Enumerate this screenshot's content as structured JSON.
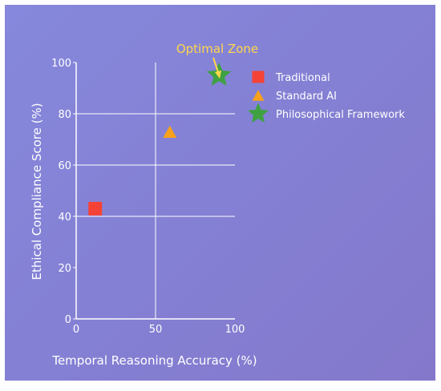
{
  "colors": {
    "background_start": "#8588dc",
    "background_end": "#8478cb",
    "axis": "#ffffff",
    "grid": "#ffffff",
    "annotation": "#ffd84a"
  },
  "chart_data": {
    "type": "scatter",
    "title": "",
    "xlabel": "Temporal Reasoning Accuracy (%)",
    "ylabel": "Ethical Compliance Score (%)",
    "xlim": [
      0,
      100
    ],
    "ylim": [
      0,
      100
    ],
    "x_ticks": [
      "0",
      "50",
      "100"
    ],
    "y_ticks": [
      "0",
      "20",
      "40",
      "60",
      "80",
      "100"
    ],
    "x_tick_values": [
      0,
      50,
      100
    ],
    "y_tick_values": [
      0,
      20,
      40,
      60,
      80,
      100
    ],
    "x_grid_values": [
      50
    ],
    "y_grid_values": [
      40,
      60,
      80
    ],
    "grid": true,
    "legend_position": "top-right",
    "series": [
      {
        "name": "Traditional",
        "x": 12,
        "y": 43,
        "marker": "square",
        "color": "#f44336"
      },
      {
        "name": "Standard AI",
        "x": 59,
        "y": 73,
        "marker": "triangle",
        "color": "#f9a11b"
      },
      {
        "name": "Philosophical Framework",
        "x": 90,
        "y": 95,
        "marker": "star",
        "color": "#3fa142"
      }
    ],
    "annotation": {
      "text": "Optimal Zone",
      "target_x": 90,
      "target_y": 95
    }
  }
}
